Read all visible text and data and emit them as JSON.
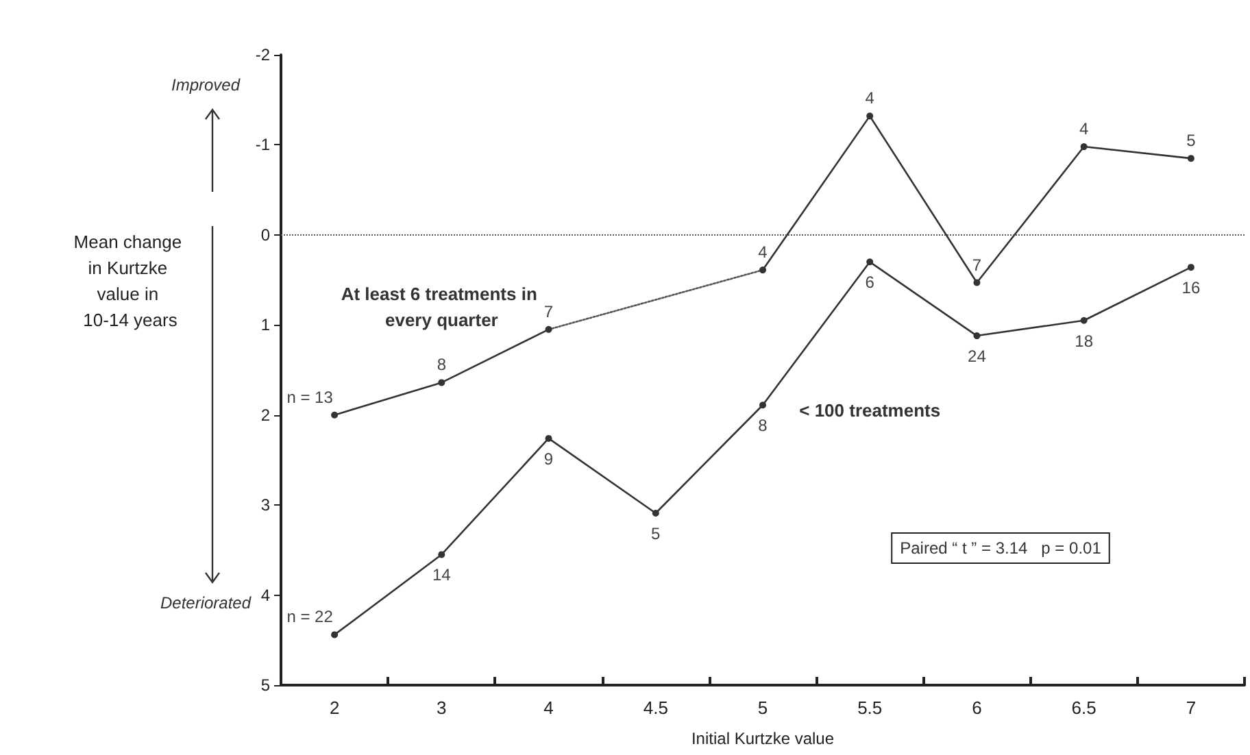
{
  "chart_data": {
    "type": "line",
    "xlabel": "Initial Kurtzke value",
    "ylabel": "Mean change in Kurtzke value in 10-14 years",
    "categories": [
      "2",
      "3",
      "4",
      "4.5",
      "5",
      "5.5",
      "6",
      "6.5",
      "7"
    ],
    "series": [
      {
        "name": "At least 6 treatments in every quarter",
        "color": "#333333",
        "values": [
          2.0,
          1.64,
          1.05,
          null,
          0.39,
          -1.32,
          0.53,
          -0.98,
          -0.85
        ]
      },
      {
        "name": "< 100 treatments",
        "color": "#333333",
        "values": [
          4.44,
          3.55,
          2.26,
          3.09,
          1.89,
          0.3,
          1.12,
          0.95,
          0.36
        ]
      },
      {
        "color": "#555555",
        "x": [
          "4",
          "5"
        ],
        "values": [
          1.05,
          0.39
        ],
        "line_style": "dotted",
        "marker": "none"
      }
    ],
    "ylim": [
      5,
      -2
    ],
    "yticks": [
      -2,
      -1,
      0,
      1,
      2,
      3,
      4,
      5
    ],
    "ref_lines": [
      {
        "axis": "y",
        "value": 0,
        "color": "#555555",
        "line_style": "dotted"
      }
    ],
    "annotations": [
      "Improved",
      "Deteriorated",
      "Paired “ t ” = 3.14   p = 0.01",
      {
        "text": "n = 13",
        "x": "2",
        "y": 2.0
      },
      {
        "text": "8",
        "x": "3",
        "y": 1.64
      },
      {
        "text": "7",
        "x": "4",
        "y": 1.05
      },
      {
        "text": "4",
        "x": "5",
        "y": 0.39
      },
      {
        "text": "4",
        "x": "5.5",
        "y": -1.32
      },
      {
        "text": "7",
        "x": "6",
        "y": 0.53
      },
      {
        "text": "4",
        "x": "6.5",
        "y": -0.98
      },
      {
        "text": "5",
        "x": "7",
        "y": -0.85
      },
      {
        "text": "n = 22",
        "x": "2",
        "y": 4.44
      },
      {
        "text": "14",
        "x": "3",
        "y": 3.55
      },
      {
        "text": "9",
        "x": "4",
        "y": 2.26
      },
      {
        "text": "5",
        "x": "4.5",
        "y": 3.09
      },
      {
        "text": "8",
        "x": "5",
        "y": 1.89
      },
      {
        "text": "6",
        "x": "5.5",
        "y": 0.3
      },
      {
        "text": "24",
        "x": "6",
        "y": 1.12
      },
      {
        "text": "18",
        "x": "6.5",
        "y": 0.95
      },
      {
        "text": "16",
        "x": "7",
        "y": 0.36
      }
    ],
    "marker": "circle",
    "line_style": "solid",
    "grid": false,
    "legend": false
  }
}
